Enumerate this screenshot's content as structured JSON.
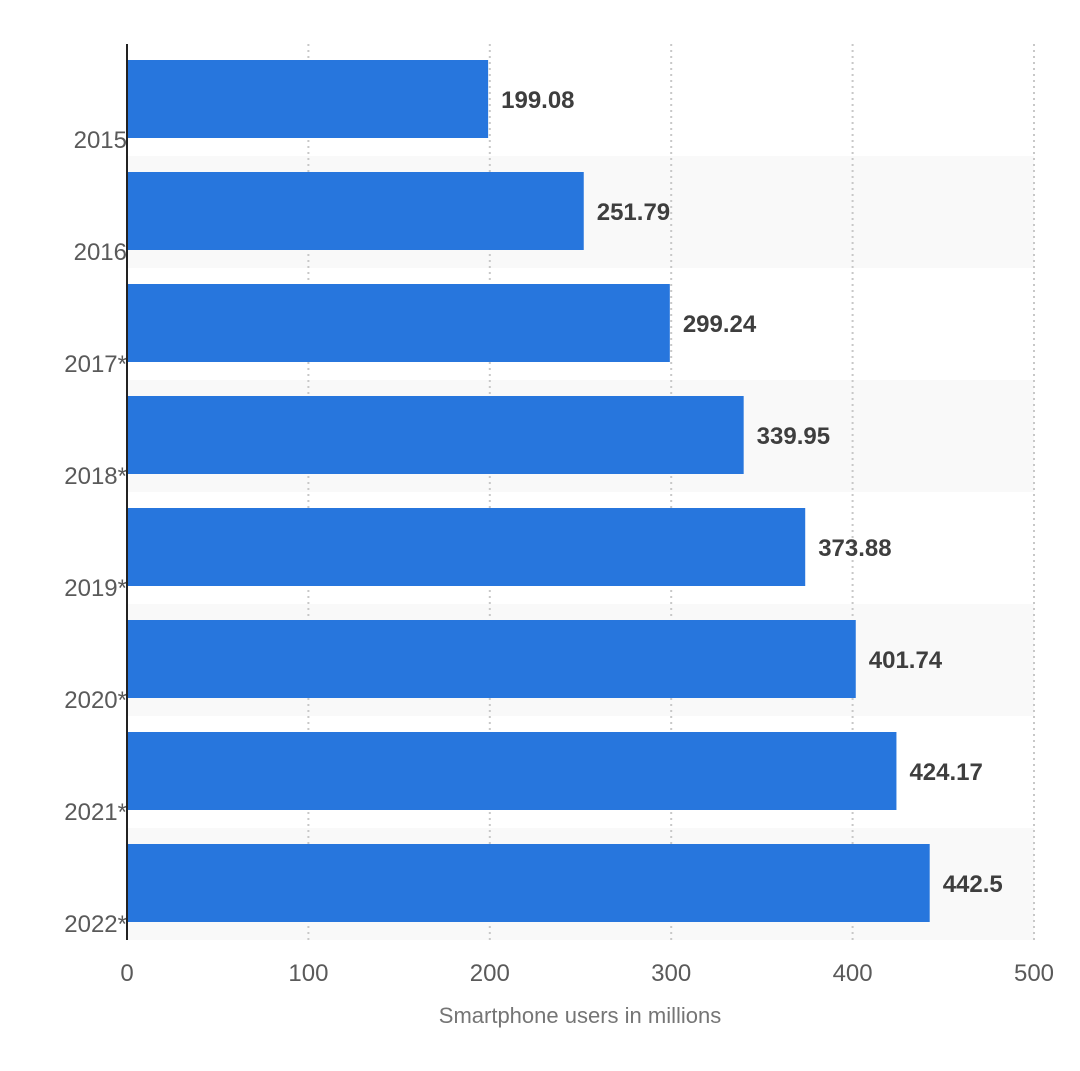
{
  "chart_data": {
    "type": "bar",
    "orientation": "horizontal",
    "categories": [
      "2015",
      "2016",
      "2017*",
      "2018*",
      "2019*",
      "2020*",
      "2021*",
      "2022*"
    ],
    "values": [
      199.08,
      251.79,
      299.24,
      339.95,
      373.88,
      401.74,
      424.17,
      442.5
    ],
    "value_labels": [
      "199.08",
      "251.79",
      "299.24",
      "339.95",
      "373.88",
      "401.74",
      "424.17",
      "442.5"
    ],
    "xlabel": "Smartphone users in millions",
    "ylabel": "",
    "xlim": [
      0,
      500
    ],
    "xticks": [
      "0",
      "100",
      "200",
      "300",
      "400",
      "500"
    ],
    "grid": "vertical-dotted",
    "legend": "none",
    "colors": {
      "bar": "#2776dd",
      "band": "#f9f9f9",
      "grid": "#c8c8c8",
      "axis": "#222222"
    }
  }
}
